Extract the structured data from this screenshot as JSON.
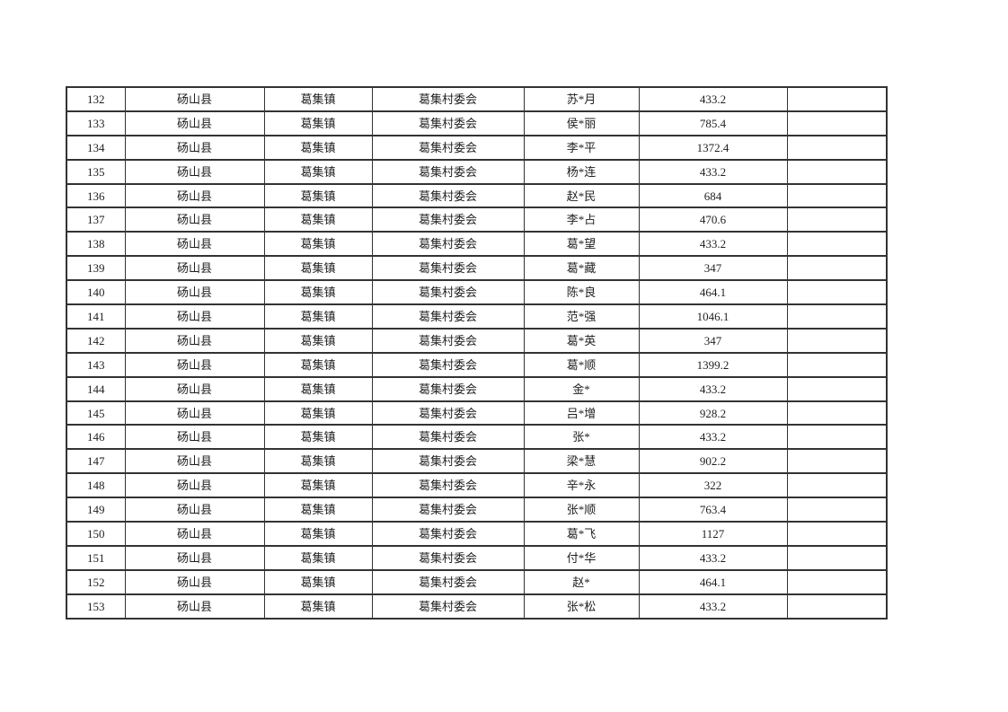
{
  "colors": {
    "border": "#333333",
    "text": "#1f1f1f",
    "page_background": "#ffffff"
  },
  "table": {
    "rows": [
      {
        "num": "132",
        "county": "砀山县",
        "town": "葛集镇",
        "village": "葛集村委会",
        "name": "苏*月",
        "amount": "433.2",
        "blank": ""
      },
      {
        "num": "133",
        "county": "砀山县",
        "town": "葛集镇",
        "village": "葛集村委会",
        "name": "侯*丽",
        "amount": "785.4",
        "blank": ""
      },
      {
        "num": "134",
        "county": "砀山县",
        "town": "葛集镇",
        "village": "葛集村委会",
        "name": "李*平",
        "amount": "1372.4",
        "blank": ""
      },
      {
        "num": "135",
        "county": "砀山县",
        "town": "葛集镇",
        "village": "葛集村委会",
        "name": "杨*连",
        "amount": "433.2",
        "blank": ""
      },
      {
        "num": "136",
        "county": "砀山县",
        "town": "葛集镇",
        "village": "葛集村委会",
        "name": "赵*民",
        "amount": "684",
        "blank": ""
      },
      {
        "num": "137",
        "county": "砀山县",
        "town": "葛集镇",
        "village": "葛集村委会",
        "name": "李*占",
        "amount": "470.6",
        "blank": ""
      },
      {
        "num": "138",
        "county": "砀山县",
        "town": "葛集镇",
        "village": "葛集村委会",
        "name": "葛*望",
        "amount": "433.2",
        "blank": ""
      },
      {
        "num": "139",
        "county": "砀山县",
        "town": "葛集镇",
        "village": "葛集村委会",
        "name": "葛*藏",
        "amount": "347",
        "blank": ""
      },
      {
        "num": "140",
        "county": "砀山县",
        "town": "葛集镇",
        "village": "葛集村委会",
        "name": "陈*良",
        "amount": "464.1",
        "blank": ""
      },
      {
        "num": "141",
        "county": "砀山县",
        "town": "葛集镇",
        "village": "葛集村委会",
        "name": "范*强",
        "amount": "1046.1",
        "blank": ""
      },
      {
        "num": "142",
        "county": "砀山县",
        "town": "葛集镇",
        "village": "葛集村委会",
        "name": "葛*英",
        "amount": "347",
        "blank": ""
      },
      {
        "num": "143",
        "county": "砀山县",
        "town": "葛集镇",
        "village": "葛集村委会",
        "name": "葛*顺",
        "amount": "1399.2",
        "blank": ""
      },
      {
        "num": "144",
        "county": "砀山县",
        "town": "葛集镇",
        "village": "葛集村委会",
        "name": "金*",
        "amount": "433.2",
        "blank": ""
      },
      {
        "num": "145",
        "county": "砀山县",
        "town": "葛集镇",
        "village": "葛集村委会",
        "name": "吕*增",
        "amount": "928.2",
        "blank": ""
      },
      {
        "num": "146",
        "county": "砀山县",
        "town": "葛集镇",
        "village": "葛集村委会",
        "name": "张*",
        "amount": "433.2",
        "blank": ""
      },
      {
        "num": "147",
        "county": "砀山县",
        "town": "葛集镇",
        "village": "葛集村委会",
        "name": "梁*慧",
        "amount": "902.2",
        "blank": ""
      },
      {
        "num": "148",
        "county": "砀山县",
        "town": "葛集镇",
        "village": "葛集村委会",
        "name": "辛*永",
        "amount": "322",
        "blank": ""
      },
      {
        "num": "149",
        "county": "砀山县",
        "town": "葛集镇",
        "village": "葛集村委会",
        "name": "张*顺",
        "amount": "763.4",
        "blank": ""
      },
      {
        "num": "150",
        "county": "砀山县",
        "town": "葛集镇",
        "village": "葛集村委会",
        "name": "葛*飞",
        "amount": "1127",
        "blank": ""
      },
      {
        "num": "151",
        "county": "砀山县",
        "town": "葛集镇",
        "village": "葛集村委会",
        "name": "付*华",
        "amount": "433.2",
        "blank": ""
      },
      {
        "num": "152",
        "county": "砀山县",
        "town": "葛集镇",
        "village": "葛集村委会",
        "name": "赵*",
        "amount": "464.1",
        "blank": ""
      },
      {
        "num": "153",
        "county": "砀山县",
        "town": "葛集镇",
        "village": "葛集村委会",
        "name": "张*松",
        "amount": "433.2",
        "blank": ""
      }
    ]
  }
}
